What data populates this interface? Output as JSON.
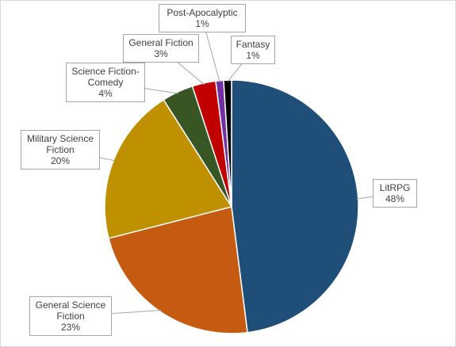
{
  "chart_data": {
    "type": "pie",
    "categories": [
      "LitRPG",
      "General Science Fiction",
      "Military Science Fiction",
      "Science Fiction-Comedy",
      "General Fiction",
      "Post-Apocalyptic",
      "Fantasy"
    ],
    "values": [
      48,
      23,
      20,
      4,
      3,
      1,
      1
    ],
    "value_labels": [
      "48%",
      "23%",
      "20%",
      "4%",
      "3%",
      "1%",
      "1%"
    ],
    "colors": [
      "#1f4e79",
      "#c55a11",
      "#bf9000",
      "#375623",
      "#c00000",
      "#7030a0",
      "#000000"
    ]
  }
}
